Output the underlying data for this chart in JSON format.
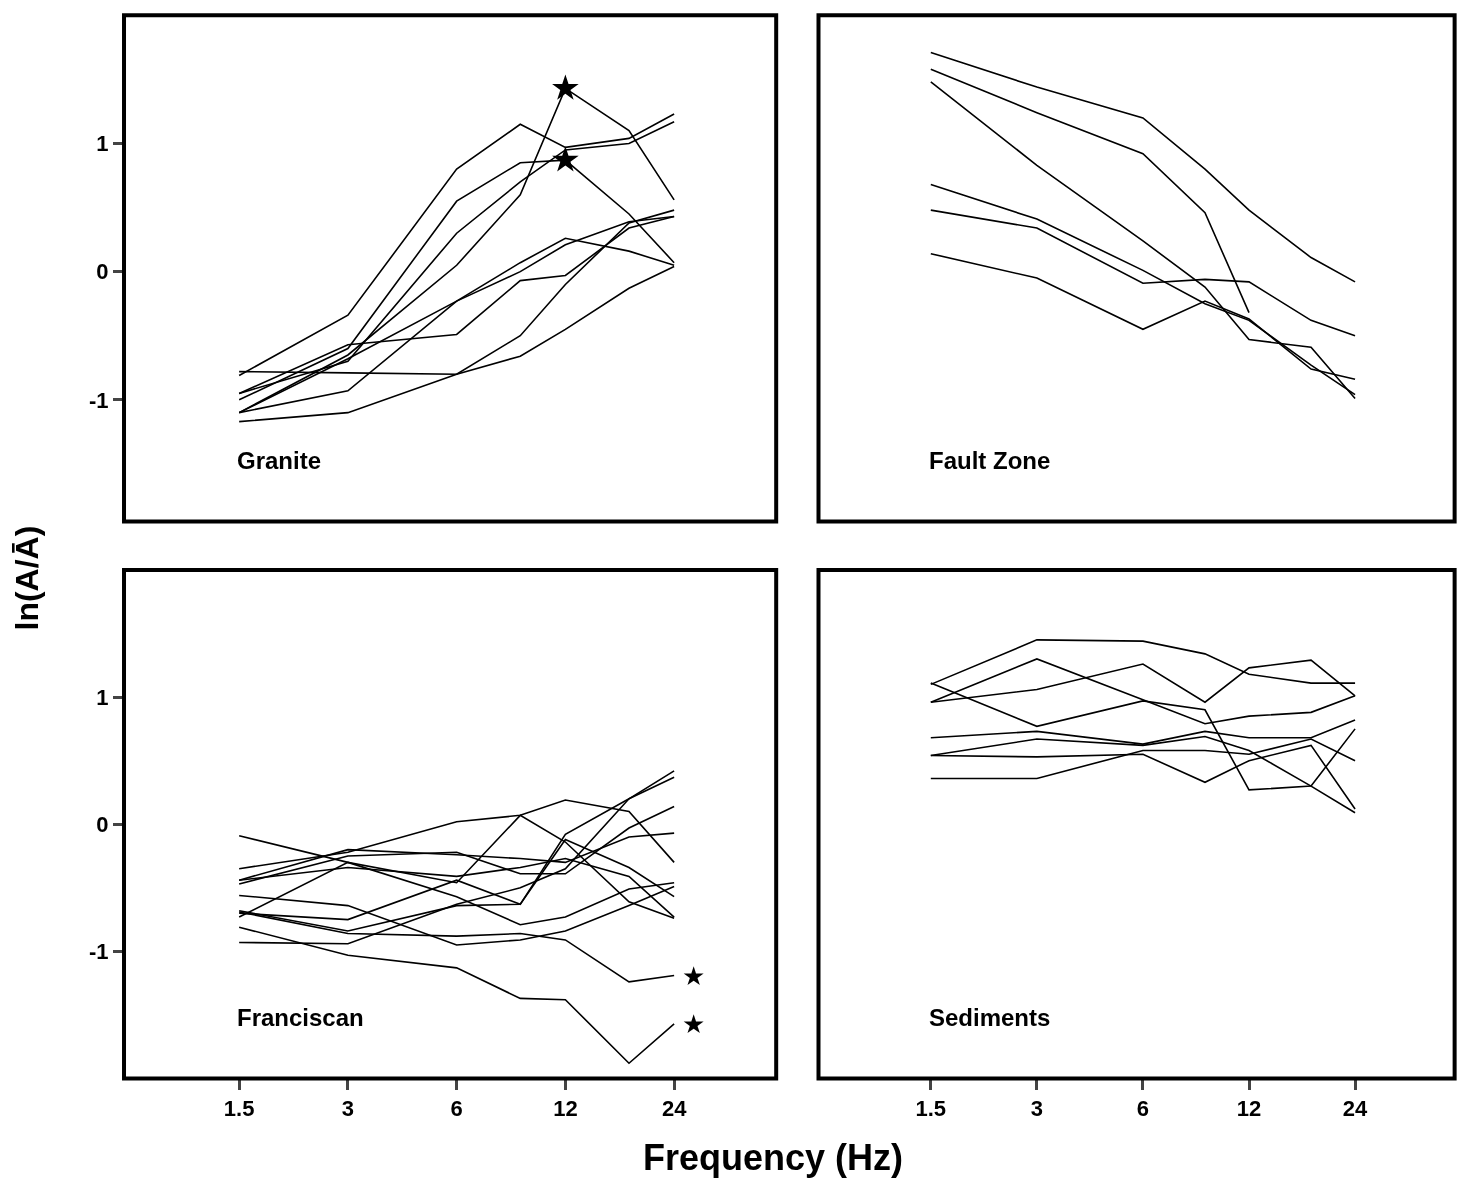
{
  "chart_data": [
    {
      "type": "line",
      "title": "Granite",
      "log": "x",
      "xlim": [
        0.72,
        46
      ],
      "xticks": [
        1.5,
        3,
        6,
        12,
        24
      ],
      "ylim": [
        -1.95,
        2.0
      ],
      "yticks": [
        -1,
        0,
        1
      ],
      "tick_labels": "y",
      "line_style": "solid",
      "x": [
        1.5,
        3,
        6,
        9,
        12,
        18,
        24
      ],
      "series": [
        {
          "color": "#000000",
          "values": [
            -1.1,
            -0.65,
            0.05,
            0.6,
            1.43,
            1.1,
            0.56
          ]
        },
        {
          "color": "#000000",
          "values": [
            -0.81,
            -0.34,
            0.8,
            1.15,
            0.97,
            1.04,
            1.23
          ]
        },
        {
          "color": "#000000",
          "values": [
            -1.0,
            -0.6,
            0.55,
            0.85,
            0.87,
            0.45,
            0.07
          ]
        },
        {
          "color": "#000000",
          "values": [
            -0.95,
            -0.7,
            0.3,
            0.7,
            0.95,
            1.0,
            1.17
          ]
        },
        {
          "color": "#000000",
          "values": [
            -1.17,
            -1.1,
            -0.8,
            -0.66,
            -0.45,
            -0.13,
            0.04
          ]
        },
        {
          "color": "#000000",
          "values": [
            -0.78,
            -0.79,
            -0.8,
            -0.5,
            -0.1,
            0.38,
            0.48
          ]
        },
        {
          "color": "#000000",
          "values": [
            -0.95,
            -0.57,
            -0.49,
            -0.07,
            -0.03,
            0.34,
            0.43
          ]
        },
        {
          "color": "#000000",
          "values": [
            -1.1,
            -0.93,
            -0.23,
            0.07,
            0.26,
            0.16,
            0.05
          ]
        },
        {
          "color": "#000000",
          "values": [
            -1.1,
            -0.68,
            -0.23,
            0.0,
            0.21,
            0.39,
            0.43
          ]
        },
        {
          "type": "scatter",
          "marker": "star",
          "color": "#000000",
          "values": [
            null,
            null,
            null,
            null,
            1.43,
            null,
            null
          ]
        },
        {
          "type": "scatter",
          "marker": "star",
          "color": "#000000",
          "values": [
            null,
            null,
            null,
            null,
            0.87,
            null,
            null
          ]
        }
      ]
    },
    {
      "type": "line",
      "title": "Fault Zone",
      "log": "x",
      "xlim": [
        0.72,
        46
      ],
      "xticks": [
        1.5,
        3,
        6,
        12,
        24
      ],
      "ylim": [
        -1.95,
        2.0
      ],
      "yticks": [
        -1,
        0,
        1
      ],
      "tick_labels": false,
      "line_style": "solid",
      "x": [
        1.5,
        3,
        6,
        9,
        12,
        18,
        24
      ],
      "series": [
        {
          "color": "#000000",
          "values": [
            1.71,
            1.44,
            1.2,
            0.8,
            0.48,
            0.11,
            -0.08
          ]
        },
        {
          "color": "#000000",
          "values": [
            1.58,
            1.24,
            0.92,
            0.46,
            -0.32,
            null,
            null
          ]
        },
        {
          "color": "#000000",
          "values": [
            1.48,
            0.83,
            0.24,
            -0.12,
            -0.53,
            -0.59,
            -0.99
          ]
        },
        {
          "color": "#000000",
          "values": [
            0.68,
            0.41,
            0.01,
            -0.25,
            -0.38,
            -0.73,
            -0.96
          ]
        },
        {
          "color": "#000000",
          "values": [
            0.48,
            0.34,
            -0.09,
            -0.06,
            -0.08,
            -0.38,
            -0.5
          ]
        },
        {
          "color": "#000000",
          "values": [
            0.14,
            -0.05,
            -0.45,
            -0.23,
            -0.37,
            -0.76,
            -0.84
          ]
        }
      ]
    },
    {
      "type": "line",
      "title": "Franciscan",
      "xlabel": "Frequency (Hz)",
      "ylabel": "ln(A/Ā)",
      "log": "x",
      "xlim": [
        0.72,
        46
      ],
      "xticks": [
        1.5,
        3,
        6,
        12,
        24
      ],
      "ylim": [
        -2.0,
        2.0
      ],
      "yticks": [
        -1,
        0,
        1
      ],
      "line_style": "solid",
      "x": [
        1.5,
        3,
        6,
        9,
        12,
        18,
        24
      ],
      "series": [
        {
          "color": "#000000",
          "values": [
            -0.81,
            -1.03,
            -1.13,
            -1.37,
            -1.38,
            -1.88,
            -1.57
          ]
        },
        {
          "color": "#000000",
          "values": [
            -0.69,
            -0.86,
            -0.88,
            -0.86,
            -0.91,
            -1.24,
            -1.19
          ]
        },
        {
          "color": "#000000",
          "values": [
            -0.93,
            -0.94,
            -0.63,
            -0.5,
            -0.35,
            0.2,
            0.42
          ]
        },
        {
          "color": "#000000",
          "values": [
            -0.09,
            -0.3,
            -0.57,
            -0.79,
            -0.73,
            -0.51,
            -0.46
          ]
        },
        {
          "color": "#000000",
          "values": [
            -0.35,
            -0.22,
            0.02,
            0.07,
            0.19,
            0.1,
            -0.3
          ]
        },
        {
          "color": "#000000",
          "values": [
            -0.44,
            -0.2,
            -0.24,
            -0.27,
            -0.3,
            -0.1,
            -0.07
          ]
        },
        {
          "color": "#000000",
          "values": [
            -0.73,
            -0.3,
            -0.46,
            0.07,
            -0.14,
            -0.61,
            -0.74
          ]
        },
        {
          "color": "#000000",
          "values": [
            -0.56,
            -0.64,
            -0.95,
            -0.91,
            -0.84,
            -0.64,
            -0.49
          ]
        },
        {
          "color": "#000000",
          "values": [
            -0.68,
            -0.84,
            -0.64,
            -0.63,
            -0.12,
            -0.34,
            -0.57
          ]
        },
        {
          "color": "#000000",
          "values": [
            -0.47,
            -0.25,
            -0.22,
            -0.39,
            -0.39,
            -0.03,
            0.14
          ]
        },
        {
          "color": "#000000",
          "values": [
            -0.7,
            -0.75,
            -0.44,
            -0.63,
            -0.08,
            0.2,
            0.37
          ]
        },
        {
          "color": "#000000",
          "values": [
            -0.44,
            -0.34,
            -0.41,
            -0.34,
            -0.27,
            -0.41,
            -0.73
          ]
        }
      ],
      "annotations": [
        {
          "text": "★",
          "x": 24,
          "y": -1.19
        },
        {
          "text": "★",
          "x": 24,
          "y": -1.57
        }
      ]
    },
    {
      "type": "line",
      "title": "Sediments",
      "log": "x",
      "xlim": [
        0.72,
        46
      ],
      "xticks": [
        1.5,
        3,
        6,
        12,
        24
      ],
      "ylim": [
        -2.0,
        2.0
      ],
      "yticks": [
        -1,
        0,
        1
      ],
      "tick_labels": "x",
      "line_style": "solid",
      "x": [
        1.5,
        3,
        6,
        9,
        12,
        18,
        24
      ],
      "series": [
        {
          "color": "#000000",
          "values": [
            1.1,
            1.45,
            1.44,
            1.34,
            1.18,
            1.11,
            1.11
          ]
        },
        {
          "color": "#000000",
          "values": [
            0.96,
            1.3,
            0.98,
            0.79,
            0.85,
            0.88,
            1.01
          ]
        },
        {
          "color": "#000000",
          "values": [
            1.11,
            0.77,
            0.97,
            0.9,
            0.27,
            0.3,
            0.75
          ]
        },
        {
          "color": "#000000",
          "values": [
            0.96,
            1.06,
            1.26,
            0.96,
            1.23,
            1.29,
            1.01
          ]
        },
        {
          "color": "#000000",
          "values": [
            0.68,
            0.73,
            0.63,
            0.73,
            0.68,
            0.68,
            0.82
          ]
        },
        {
          "color": "#000000",
          "values": [
            0.54,
            0.67,
            0.62,
            0.69,
            0.58,
            0.3,
            0.09
          ]
        },
        {
          "color": "#000000",
          "values": [
            0.54,
            0.53,
            0.55,
            0.33,
            0.5,
            0.62,
            0.12
          ]
        },
        {
          "color": "#000000",
          "values": [
            0.36,
            0.36,
            0.58,
            0.58,
            0.55,
            0.67,
            0.5
          ]
        }
      ]
    }
  ]
}
